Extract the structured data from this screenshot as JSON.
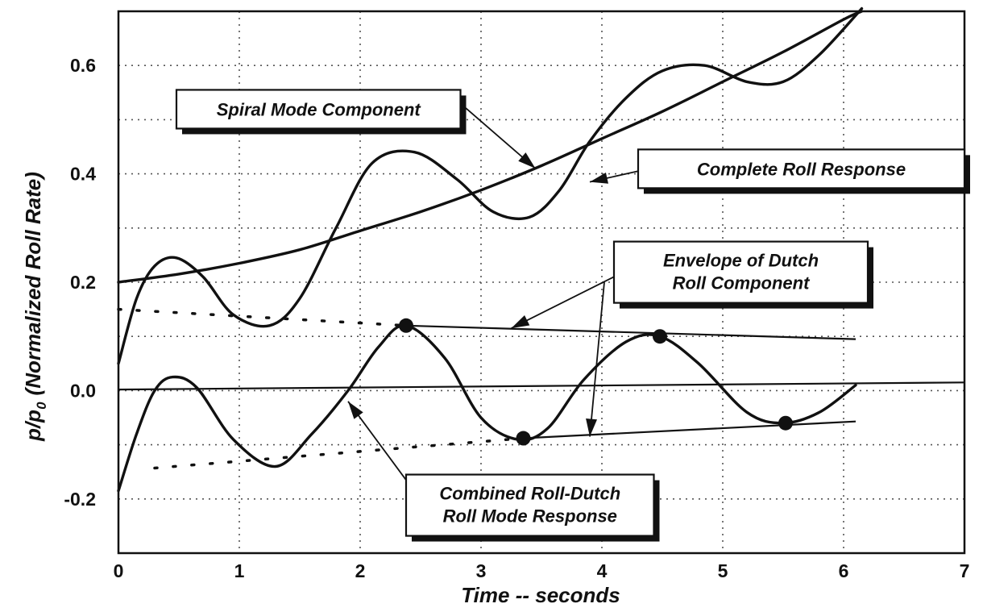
{
  "chart_data": {
    "type": "line",
    "title": "",
    "xlabel": "Time -- seconds",
    "ylabel_main": "p/p",
    "ylabel_sub": "0",
    "ylabel_rest": "(Normalized Roll Rate)",
    "xlim": [
      0,
      7
    ],
    "ylim": [
      -0.3,
      0.7
    ],
    "x_ticks": [
      0,
      1,
      2,
      3,
      4,
      5,
      6,
      7
    ],
    "x_tick_labels": [
      "0",
      "1",
      "2",
      "3",
      "4",
      "5",
      "6",
      "7"
    ],
    "y_ticks": [
      -0.2,
      0.0,
      0.2,
      0.4,
      0.6
    ],
    "y_tick_labels": [
      "-0.2",
      "0.0",
      "0.2",
      "0.4",
      "0.6"
    ],
    "grid": true,
    "series": [
      {
        "key": "spiral",
        "x": [
          0,
          0.5,
          1,
          1.5,
          2,
          2.5,
          3,
          3.5,
          4,
          4.5,
          5,
          5.5,
          6,
          6.15
        ],
        "y": [
          0.2,
          0.215,
          0.235,
          0.26,
          0.295,
          0.33,
          0.37,
          0.415,
          0.465,
          0.515,
          0.57,
          0.625,
          0.685,
          0.7
        ]
      },
      {
        "key": "complete",
        "x": [
          0,
          0.15,
          0.3,
          0.48,
          0.7,
          0.95,
          1.25,
          1.5,
          1.8,
          2.1,
          2.45,
          2.8,
          3.1,
          3.4,
          3.65,
          3.9,
          4.2,
          4.5,
          4.85,
          5.2,
          5.5,
          5.8,
          6.15
        ],
        "y": [
          0.05,
          0.17,
          0.23,
          0.245,
          0.21,
          0.14,
          0.12,
          0.17,
          0.3,
          0.42,
          0.44,
          0.39,
          0.33,
          0.32,
          0.37,
          0.46,
          0.54,
          0.59,
          0.6,
          0.57,
          0.57,
          0.62,
          0.705
        ]
      },
      {
        "key": "combined",
        "x": [
          0,
          0.15,
          0.3,
          0.45,
          0.65,
          0.95,
          1.3,
          1.6,
          1.9,
          2.15,
          2.38,
          2.7,
          3.0,
          3.3,
          3.55,
          3.85,
          4.2,
          4.48,
          4.8,
          5.2,
          5.5,
          5.8,
          6.1
        ],
        "y": [
          -0.185,
          -0.08,
          0.0,
          0.025,
          0.005,
          -0.09,
          -0.14,
          -0.08,
          0.0,
          0.08,
          0.12,
          0.06,
          -0.05,
          -0.09,
          -0.07,
          0.02,
          0.09,
          0.1,
          0.05,
          -0.04,
          -0.06,
          -0.04,
          0.01
        ]
      },
      {
        "key": "envelope_upper",
        "x": [
          2.38,
          6.1
        ],
        "y": [
          0.12,
          0.095
        ]
      },
      {
        "key": "envelope_lower",
        "x": [
          3.35,
          6.1
        ],
        "y": [
          -0.088,
          -0.057
        ]
      },
      {
        "key": "dotted_upper",
        "x": [
          0,
          2.38
        ],
        "y": [
          0.15,
          0.12
        ]
      },
      {
        "key": "dotted_lower",
        "x": [
          0.3,
          3.35
        ],
        "y": [
          -0.143,
          -0.088
        ]
      },
      {
        "key": "zero_line",
        "x": [
          0,
          7
        ],
        "y": [
          0.002,
          0.015
        ]
      }
    ],
    "markers": [
      {
        "x": 2.38,
        "y": 0.12
      },
      {
        "x": 3.35,
        "y": -0.088
      },
      {
        "x": 4.48,
        "y": 0.1
      },
      {
        "x": 5.52,
        "y": -0.06
      }
    ],
    "annotations": [
      {
        "key": "spiral",
        "lines": [
          "Spiral Mode Component"
        ],
        "box_x": 0.48,
        "box_y": 0.555,
        "box_w": 2.35,
        "lines_h": 1,
        "arrow_from": [
          2.7,
          0.555
        ],
        "arrow_to": [
          3.45,
          0.41
        ]
      },
      {
        "key": "complete",
        "lines": [
          "Complete Roll Response"
        ],
        "box_x": 4.3,
        "box_y": 0.445,
        "box_w": 2.7,
        "lines_h": 1,
        "arrow_from": [
          4.3,
          0.405
        ],
        "arrow_to": [
          3.9,
          0.385
        ]
      },
      {
        "key": "envelope",
        "lines": [
          "Envelope of Dutch",
          "Roll Component"
        ],
        "box_x": 4.1,
        "box_y": 0.275,
        "box_w": 2.1,
        "lines_h": 2,
        "arrow_from": [
          4.1,
          0.21
        ],
        "arrow_to": [
          3.25,
          0.115
        ]
      },
      {
        "key": "envelope2",
        "lines": [],
        "box_x": 0,
        "box_y": 0,
        "box_w": 0,
        "lines_h": 0,
        "arrow_from": [
          4.02,
          0.2
        ],
        "arrow_to": [
          3.9,
          -0.085
        ]
      },
      {
        "key": "combined",
        "lines": [
          "Combined Roll-Dutch",
          "Roll Mode Response"
        ],
        "box_x": 2.38,
        "box_y": -0.155,
        "box_w": 2.05,
        "lines_h": 2,
        "arrow_from": [
          2.38,
          -0.165
        ],
        "arrow_to": [
          1.9,
          -0.02
        ]
      }
    ]
  }
}
